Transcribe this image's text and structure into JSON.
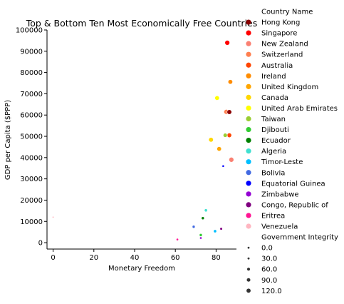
{
  "chart_data": {
    "type": "scatter",
    "title": "Top & Bottom Ten Most Economically Free Countries",
    "xlabel": "Monetary Freedom",
    "ylabel": "GDP per Capita ($PPP)",
    "xlim": [
      -3,
      90
    ],
    "ylim": [
      -3000,
      100000
    ],
    "xticks": [
      0,
      20,
      40,
      60,
      80
    ],
    "yticks": [
      0,
      10000,
      20000,
      30000,
      40000,
      50000,
      60000,
      70000,
      80000,
      90000,
      100000
    ],
    "grid": false,
    "legend_placement": "right",
    "hue_title": "Country Name",
    "size_title": "Government Integrity",
    "size_legend": [
      0.0,
      30.0,
      60.0,
      90.0,
      120.0
    ],
    "size_legend_labels": [
      "0.0",
      "30.0",
      "60.0",
      "90.0",
      "120.0"
    ],
    "series": [
      {
        "name": "Hong Kong",
        "color": "#8b0000",
        "x": 86.5,
        "y": 61400,
        "size": 83.8
      },
      {
        "name": "Singapore",
        "color": "#ff0000",
        "x": 85.5,
        "y": 94000,
        "size": 91.0
      },
      {
        "name": "New Zealand",
        "color": "#fa8072",
        "x": 87.5,
        "y": 39000,
        "size": 91.0
      },
      {
        "name": "Switzerland",
        "color": "#ff7f50",
        "x": 85.0,
        "y": 61500,
        "size": 88.0
      },
      {
        "name": "Australia",
        "color": "#ff4500",
        "x": 86.5,
        "y": 50500,
        "size": 79.0
      },
      {
        "name": "Ireland",
        "color": "#ff8c00",
        "x": 87.0,
        "y": 75600,
        "size": 79.0
      },
      {
        "name": "United Kingdom",
        "color": "#ffa500",
        "x": 81.5,
        "y": 44100,
        "size": 79.0
      },
      {
        "name": "Canada",
        "color": "#ffd700",
        "x": 77.5,
        "y": 48400,
        "size": 83.0
      },
      {
        "name": "United Arab Emirates",
        "color": "#ffff00",
        "x": 80.5,
        "y": 68000,
        "size": 79.0
      },
      {
        "name": "Taiwan",
        "color": "#9acd32",
        "x": 84.5,
        "y": 50500,
        "size": 65.0
      },
      {
        "name": "Djibouti",
        "color": "#32cd32",
        "x": 72.5,
        "y": 3600,
        "size": 32.0
      },
      {
        "name": "Ecuador",
        "color": "#008000",
        "x": 73.5,
        "y": 11500,
        "size": 32.0
      },
      {
        "name": "Algeria",
        "color": "#40e0d0",
        "x": 75.0,
        "y": 15200,
        "size": 35.0
      },
      {
        "name": "Timor-Leste",
        "color": "#00bfff",
        "x": 79.5,
        "y": 5400,
        "size": 35.0
      },
      {
        "name": "Bolivia",
        "color": "#4169e1",
        "x": 69.0,
        "y": 7500,
        "size": 30.0
      },
      {
        "name": "Equatorial Guinea",
        "color": "#0000ff",
        "x": 83.5,
        "y": 36000,
        "size": 20.0
      },
      {
        "name": "Zimbabwe",
        "color": "#9400d3",
        "x": 72.5,
        "y": 2200,
        "size": 20.0
      },
      {
        "name": "Congo, Republic of",
        "color": "#800080",
        "x": 82.5,
        "y": 6500,
        "size": 25.0
      },
      {
        "name": "Eritrea",
        "color": "#ff1493",
        "x": 61.0,
        "y": 1500,
        "size": 20.0
      },
      {
        "name": "Venezuela",
        "color": "#ffb6c1",
        "x": 0.0,
        "y": 12000,
        "size": 12.0
      }
    ]
  }
}
